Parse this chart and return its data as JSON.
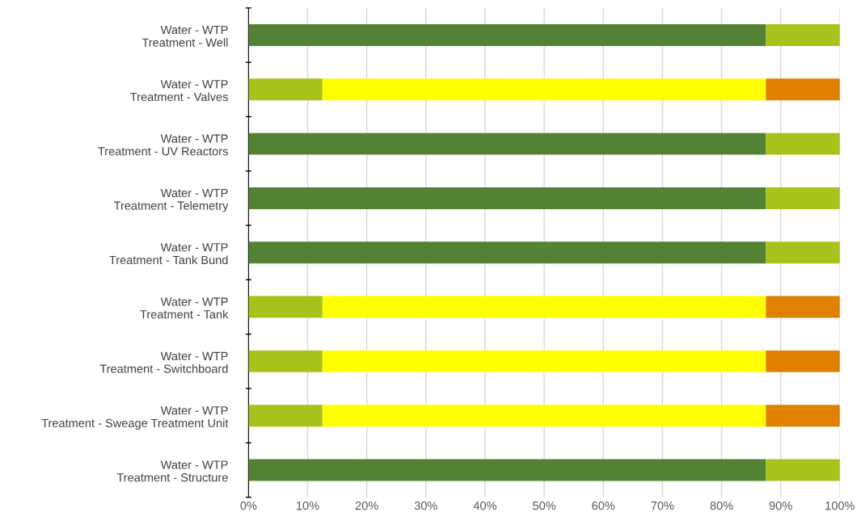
{
  "chart_data": {
    "type": "bar",
    "orientation": "horizontal",
    "stacked": true,
    "categories": [
      "Water - WTP\nTreatment - Well",
      "Water - WTP\nTreatment - Valves",
      "Water - WTP\nTreatment - UV Reactors",
      "Water - WTP\nTreatment - Telemetry",
      "Water - WTP\nTreatment - Tank Bund",
      "Water - WTP\nTreatment - Tank",
      "Water - WTP\nTreatment - Switchboard",
      "Water - WTP\nTreatment - Sweage Treatment Unit",
      "Water - WTP\nTreatment - Structure"
    ],
    "series": [
      {
        "color": "#548235",
        "values": [
          87.5,
          null,
          87.5,
          87.5,
          87.5,
          null,
          null,
          null,
          87.5
        ]
      },
      {
        "color": "#a9c11b",
        "values": [
          12.5,
          12.5,
          12.5,
          12.5,
          12.5,
          12.5,
          12.5,
          12.5,
          12.5
        ]
      },
      {
        "color": "#ffff00",
        "values": [
          null,
          75,
          null,
          null,
          null,
          75,
          75,
          75,
          null
        ]
      },
      {
        "color": "#e07f00",
        "values": [
          null,
          12.5,
          null,
          null,
          null,
          12.5,
          12.5,
          12.5,
          null
        ]
      }
    ],
    "xlim": [
      0,
      100
    ],
    "xticks": [
      {
        "value": 0,
        "label": "0%"
      },
      {
        "value": 10,
        "label": "10%"
      },
      {
        "value": 20,
        "label": "20%"
      },
      {
        "value": 30,
        "label": "30%"
      },
      {
        "value": 40,
        "label": "40%"
      },
      {
        "value": 50,
        "label": "50%"
      },
      {
        "value": 60,
        "label": "60%"
      },
      {
        "value": 70,
        "label": "70%"
      },
      {
        "value": 80,
        "label": "80%"
      },
      {
        "value": 90,
        "label": "90%"
      },
      {
        "value": 100,
        "label": "100%"
      }
    ],
    "grid": "x"
  }
}
